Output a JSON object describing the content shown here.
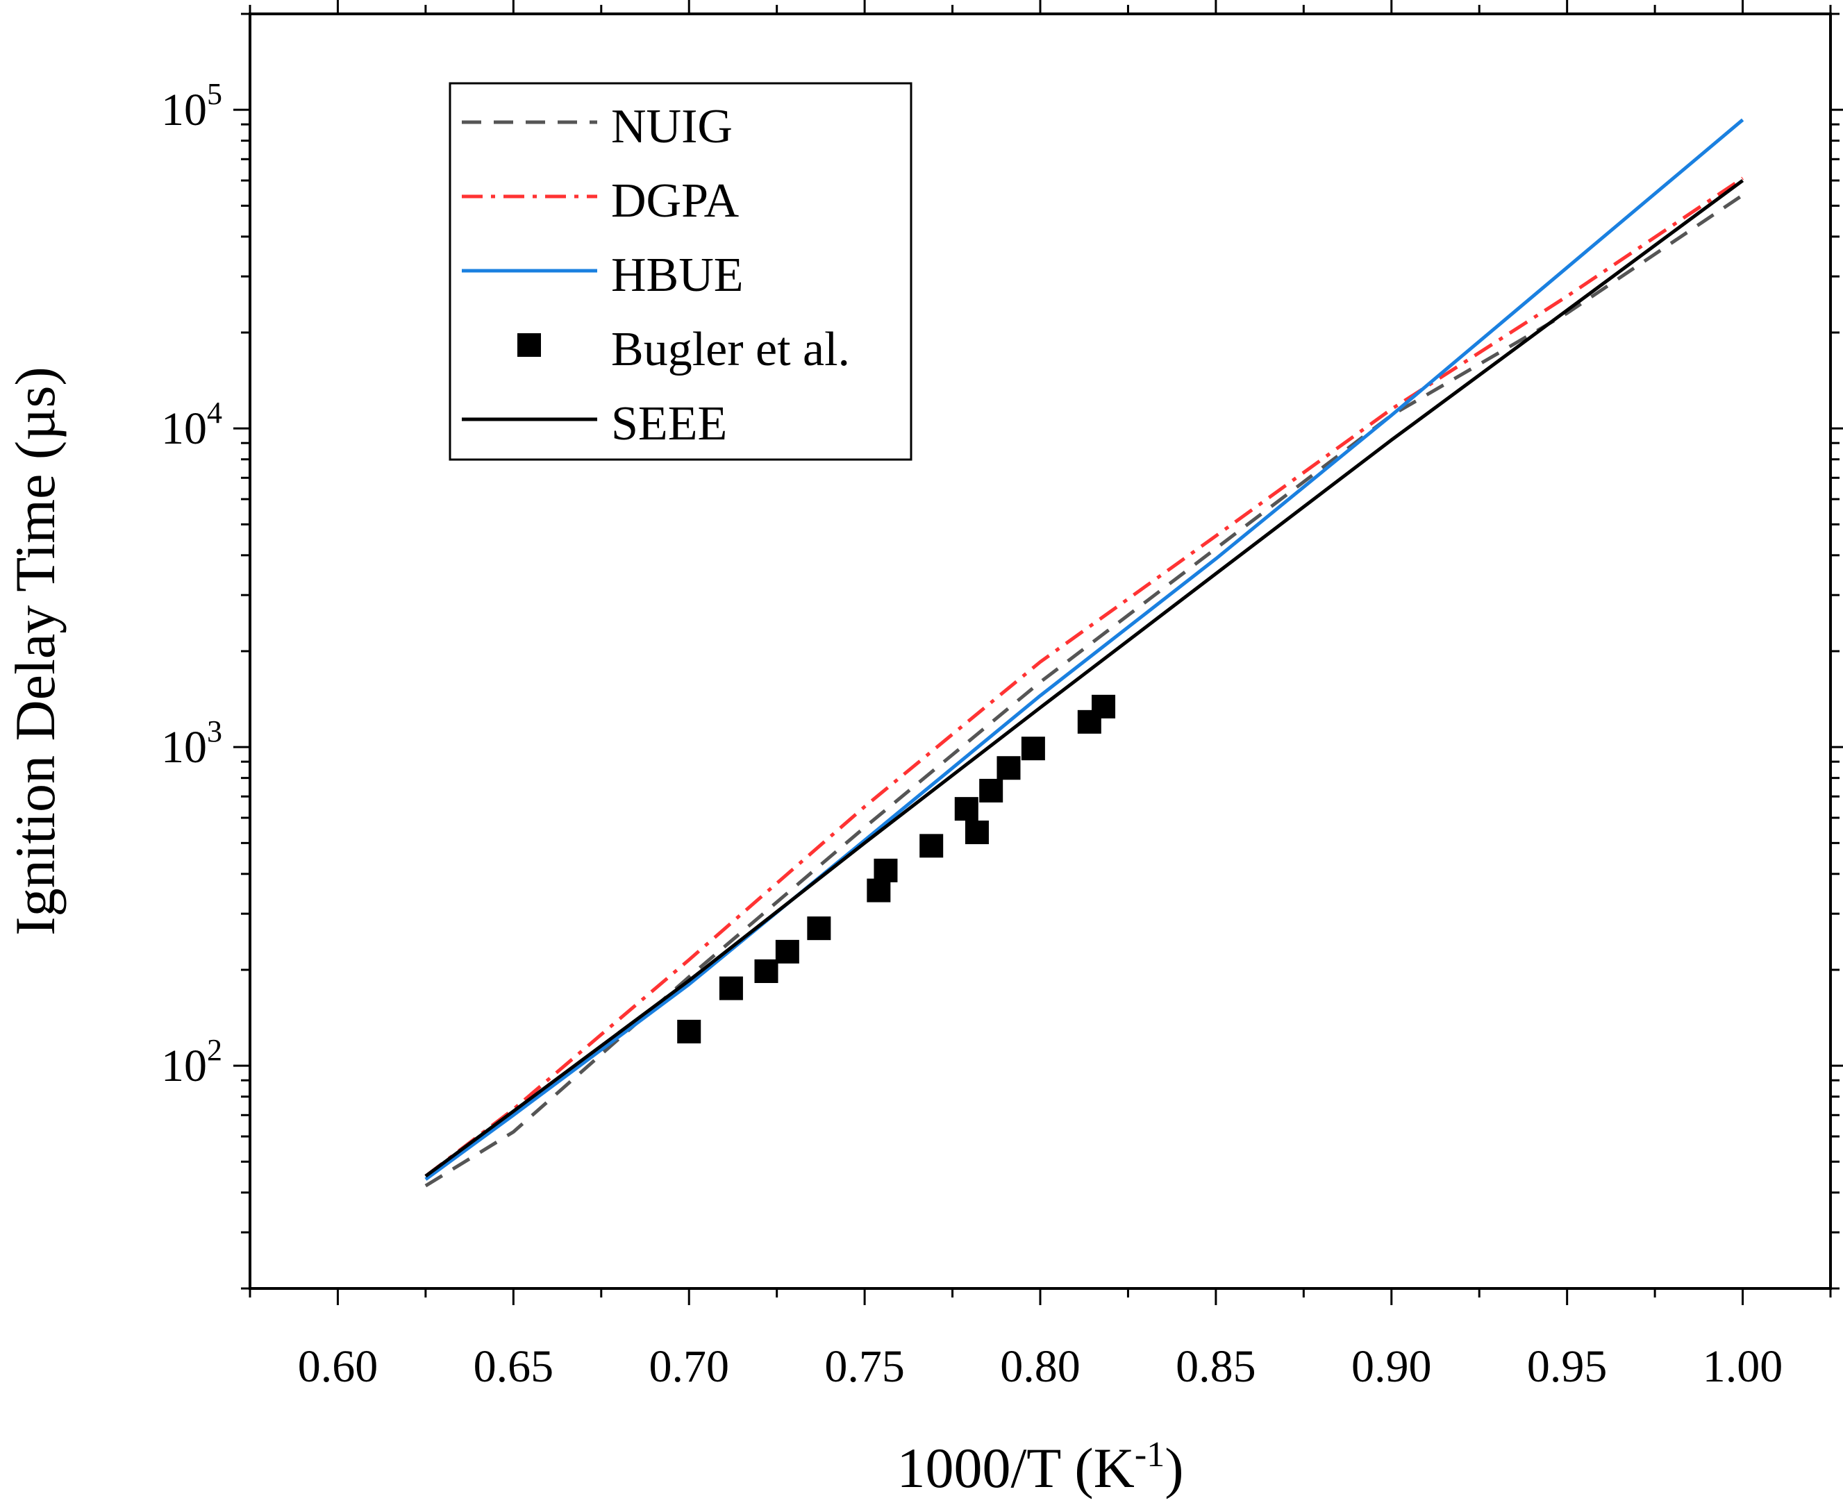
{
  "chart_data": {
    "type": "line",
    "xlabel": "1000/T (K-1)",
    "xlabel_main": "1000/T (K",
    "xlabel_sup": "-1",
    "xlabel_close": ")",
    "ylabel": "Ignition Delay Time (µs)",
    "xlim": [
      0.575,
      1.025
    ],
    "ylim": [
      20,
      200000
    ],
    "yscale": "log",
    "x_ticks": [
      {
        "value": 0.6,
        "label": "0.60"
      },
      {
        "value": 0.65,
        "label": "0.65"
      },
      {
        "value": 0.7,
        "label": "0.70"
      },
      {
        "value": 0.75,
        "label": "0.75"
      },
      {
        "value": 0.8,
        "label": "0.80"
      },
      {
        "value": 0.85,
        "label": "0.85"
      },
      {
        "value": 0.9,
        "label": "0.90"
      },
      {
        "value": 0.95,
        "label": "0.95"
      },
      {
        "value": 1.0,
        "label": "1.00"
      }
    ],
    "y_ticks": [
      {
        "value": 100,
        "base": "10",
        "exp": "2"
      },
      {
        "value": 1000,
        "base": "10",
        "exp": "3"
      },
      {
        "value": 10000,
        "base": "10",
        "exp": "4"
      },
      {
        "value": 100000,
        "base": "10",
        "exp": "5"
      }
    ],
    "legend_position": "top-left",
    "series": [
      {
        "name": "NUIG",
        "kind": "line",
        "color": "#555555",
        "dash": "dashed",
        "x": [
          0.625,
          0.65,
          0.7,
          0.75,
          0.8,
          0.85,
          0.9,
          0.95,
          1.0
        ],
        "y": [
          42,
          62,
          190,
          560,
          1600,
          4200,
          11000,
          23000,
          54000
        ]
      },
      {
        "name": "DGPA",
        "kind": "line",
        "color": "#ff3333",
        "dash": "dashdot",
        "x": [
          0.625,
          0.65,
          0.7,
          0.75,
          0.8,
          0.85,
          0.9,
          0.95,
          1.0
        ],
        "y": [
          45,
          73,
          215,
          650,
          1850,
          4600,
          11500,
          26000,
          61000
        ]
      },
      {
        "name": "HBUE",
        "kind": "line",
        "color": "#1a80e0",
        "dash": "solid",
        "x": [
          0.625,
          0.65,
          0.7,
          0.75,
          0.8,
          0.85,
          0.9,
          0.95,
          1.0
        ],
        "y": [
          44,
          70,
          180,
          510,
          1450,
          3900,
          11000,
          32000,
          93000
        ]
      },
      {
        "name": "Bugler et al.",
        "kind": "scatter",
        "color": "#000000",
        "x": [
          0.7,
          0.712,
          0.722,
          0.728,
          0.737,
          0.754,
          0.756,
          0.769,
          0.779,
          0.782,
          0.786,
          0.791,
          0.798,
          0.814,
          0.818
        ],
        "y": [
          128,
          175,
          198,
          228,
          270,
          355,
          410,
          490,
          640,
          540,
          730,
          860,
          990,
          1200,
          1340
        ]
      },
      {
        "name": "SEEE",
        "kind": "line",
        "color": "#000000",
        "dash": "solid",
        "x": [
          0.625,
          0.65,
          0.7,
          0.75,
          0.8,
          0.85,
          0.9,
          0.95,
          1.0
        ],
        "y": [
          45,
          72,
          185,
          500,
          1330,
          3500,
          9200,
          23500,
          60000
        ]
      }
    ]
  }
}
